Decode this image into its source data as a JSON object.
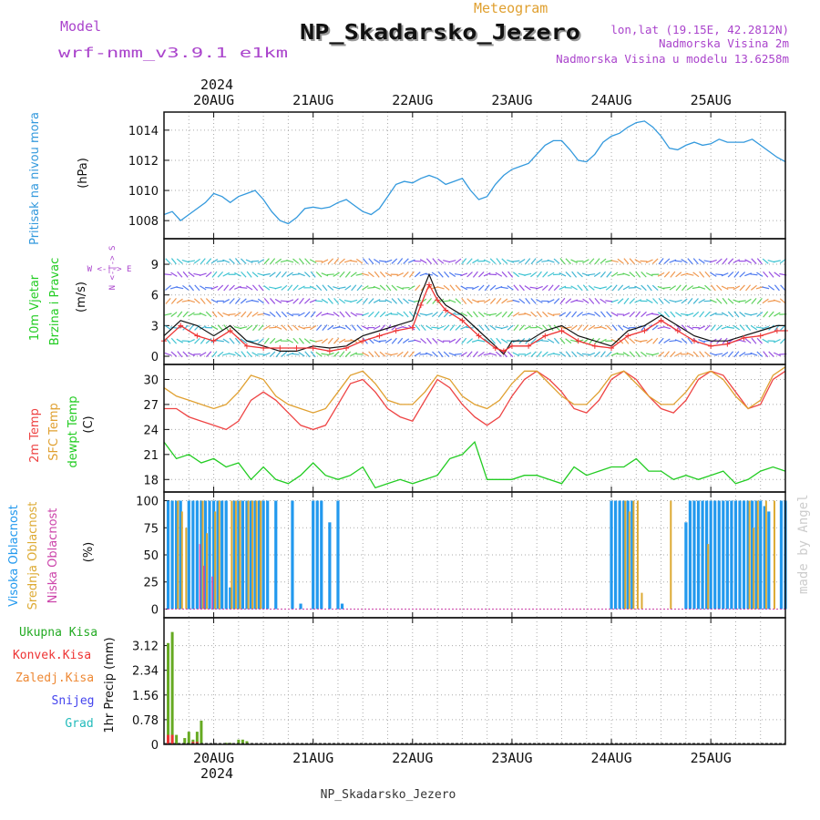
{
  "header": {
    "model_label": "Model",
    "model_name": "wrf-nmm_v3.9.1  e1km",
    "product": "Meteogram",
    "station": "NP_Skadarsko_Jezero",
    "lonlat": "lon,lat (19.15E, 42.2812N)",
    "elevation": "Nadmorska Visina 2m",
    "model_elevation": "Nadmorska Visina u modelu 13.6258m",
    "footer_station": "NP_Skadarsko_Jezero",
    "watermark": "made by Angel"
  },
  "time_axis": {
    "year": "2024",
    "date_labels": [
      "20AUG",
      "21AUG",
      "22AUG",
      "23AUG",
      "24AUG",
      "25AUG"
    ],
    "label_hours": [
      12,
      36,
      60,
      84,
      108,
      132
    ],
    "range_hours": [
      0,
      150
    ]
  },
  "colors": {
    "pressure": "#3399dd",
    "wind_speed": "#ee3333",
    "wind_gust": "#111111",
    "temp2m": "#ee4444",
    "sfc_temp": "#e0a030",
    "dewpt": "#22cc22",
    "cloud_high": "#2299ee",
    "cloud_mid": "#ddaa33",
    "cloud_low": "#cc44aa",
    "precip_total": "#66aa22",
    "precip_conv": "#ee3333",
    "precip_grid": "#ee8833",
    "snow": "#4444ee",
    "hail": "#22bbbb",
    "title_purple": "#aa44cc"
  },
  "panel_labels": {
    "pressure": {
      "name": "Pritisak na nivou mora",
      "unit": "(hPa)"
    },
    "wind": {
      "name1": "10m Vjetar",
      "name2": "Brzina i Pravac",
      "unit": "(m/s)",
      "compass_ns": "N <-|-> S",
      "compass_we": "W  <-|->  E"
    },
    "temp": {
      "name1": "2m Temp",
      "name2": "SFC Temp",
      "name3": "dewpt Temp",
      "unit": "(C)"
    },
    "cloud": {
      "name1": "Visoka Oblacnost",
      "name2": "Srednja Oblacnost",
      "name3": "Niska Oblacnost",
      "unit": "(%)"
    },
    "precip": {
      "unit": "1hr Precip (mm)",
      "legend": [
        "Ukupna Kisa",
        "Konvek.Kisa",
        "Zaledj.Kisa",
        "Snijeg",
        "Grad"
      ]
    }
  },
  "chart_data": [
    {
      "type": "line",
      "panel": "pressure",
      "ylim": [
        1006.8,
        1015.2
      ],
      "yticks": [
        1008,
        1010,
        1012,
        1014
      ],
      "ytick_labels": [
        "1008",
        "1010",
        "1012",
        "1014"
      ],
      "x": [
        0,
        2,
        4,
        6,
        8,
        10,
        12,
        14,
        16,
        18,
        20,
        22,
        24,
        26,
        28,
        30,
        32,
        34,
        36,
        38,
        40,
        42,
        44,
        46,
        48,
        50,
        52,
        54,
        56,
        58,
        60,
        62,
        64,
        66,
        68,
        70,
        72,
        74,
        76,
        78,
        80,
        82,
        84,
        86,
        88,
        90,
        92,
        94,
        96,
        98,
        100,
        102,
        104,
        106,
        108,
        110,
        112,
        114,
        116,
        118,
        120,
        122,
        124,
        126,
        128,
        130,
        132,
        134,
        136,
        138,
        140,
        142,
        144,
        146,
        148,
        150
      ],
      "series": [
        {
          "name": "Pritisak na nivou mora",
          "values": [
            1008.4,
            1008.6,
            1008.0,
            1008.4,
            1008.8,
            1009.2,
            1009.8,
            1009.6,
            1009.2,
            1009.6,
            1009.8,
            1010.0,
            1009.4,
            1008.6,
            1008.0,
            1007.8,
            1008.2,
            1008.8,
            1008.9,
            1008.8,
            1008.9,
            1009.2,
            1009.4,
            1009.0,
            1008.6,
            1008.4,
            1008.8,
            1009.6,
            1010.4,
            1010.6,
            1010.5,
            1010.8,
            1011.0,
            1010.8,
            1010.4,
            1010.6,
            1010.8,
            1010.0,
            1009.4,
            1009.6,
            1010.4,
            1011.0,
            1011.4,
            1011.6,
            1011.8,
            1012.4,
            1013.0,
            1013.3,
            1013.3,
            1012.7,
            1012.0,
            1011.9,
            1012.4,
            1013.2,
            1013.6,
            1013.8,
            1014.2,
            1014.5,
            1014.6,
            1014.2,
            1013.6,
            1012.8,
            1012.7,
            1013.0,
            1013.2,
            1013.0,
            1013.1,
            1013.4,
            1013.2,
            1013.2,
            1013.2,
            1013.4,
            1013.0,
            1012.6,
            1012.2,
            1011.9
          ]
        }
      ]
    },
    {
      "type": "line",
      "panel": "wind",
      "ylim": [
        -0.8,
        11.5
      ],
      "yticks": [
        0,
        3,
        6,
        9
      ],
      "ytick_labels": [
        "0",
        "3",
        "6",
        "9"
      ],
      "x": [
        0,
        4,
        8,
        12,
        16,
        20,
        24,
        28,
        32,
        36,
        40,
        44,
        48,
        52,
        56,
        60,
        62,
        64,
        66,
        68,
        72,
        76,
        80,
        82,
        84,
        88,
        92,
        96,
        100,
        104,
        108,
        112,
        116,
        120,
        124,
        128,
        132,
        136,
        140,
        144,
        148,
        150
      ],
      "series": [
        {
          "name": "speed",
          "values": [
            1.5,
            3.0,
            2.0,
            1.5,
            2.5,
            1.0,
            0.8,
            0.8,
            0.8,
            0.8,
            0.5,
            0.8,
            1.5,
            2.0,
            2.5,
            2.8,
            5.0,
            7.0,
            5.5,
            4.5,
            3.5,
            2.0,
            0.8,
            0.5,
            1.0,
            1.0,
            2.0,
            2.5,
            1.5,
            1.0,
            0.8,
            2.0,
            2.5,
            3.5,
            2.5,
            1.5,
            1.0,
            1.2,
            1.8,
            2.0,
            2.5,
            2.5
          ]
        },
        {
          "name": "gust",
          "values": [
            2.0,
            3.5,
            3.0,
            2.0,
            3.0,
            1.5,
            1.0,
            0.5,
            0.5,
            1.0,
            0.8,
            1.0,
            2.0,
            2.5,
            3.0,
            3.5,
            6.0,
            8.0,
            6.0,
            5.0,
            4.0,
            2.5,
            1.0,
            0.2,
            1.5,
            1.5,
            2.5,
            3.0,
            2.0,
            1.5,
            1.0,
            2.5,
            3.0,
            4.0,
            3.0,
            2.0,
            1.5,
            1.5,
            2.0,
            2.5,
            3.0,
            3.0
          ]
        }
      ]
    },
    {
      "type": "line",
      "panel": "temperature",
      "ylim": [
        16.5,
        31.8
      ],
      "yticks": [
        18,
        21,
        24,
        27,
        30
      ],
      "ytick_labels": [
        "18",
        "21",
        "24",
        "27",
        "30"
      ],
      "x": [
        0,
        3,
        6,
        9,
        12,
        15,
        18,
        21,
        24,
        27,
        30,
        33,
        36,
        39,
        42,
        45,
        48,
        51,
        54,
        57,
        60,
        63,
        66,
        69,
        72,
        75,
        78,
        81,
        84,
        87,
        90,
        93,
        96,
        99,
        102,
        105,
        108,
        111,
        114,
        117,
        120,
        123,
        126,
        129,
        132,
        135,
        138,
        141,
        144,
        147,
        150
      ],
      "series": [
        {
          "name": "2m Temp",
          "values": [
            26.5,
            26.5,
            25.5,
            25.0,
            24.5,
            24.0,
            25.0,
            27.5,
            28.5,
            27.5,
            26.0,
            24.5,
            24.0,
            24.5,
            27.0,
            29.5,
            30.0,
            28.5,
            26.5,
            25.5,
            25.0,
            27.5,
            30.0,
            29.0,
            27.0,
            25.5,
            24.5,
            25.5,
            28.0,
            30.0,
            31.0,
            30.0,
            28.5,
            26.5,
            26.0,
            27.5,
            30.0,
            31.0,
            30.0,
            28.0,
            26.5,
            26.0,
            27.5,
            30.0,
            31.0,
            30.5,
            28.5,
            26.5,
            27.0,
            30.0,
            31.0
          ]
        },
        {
          "name": "SFC Temp",
          "values": [
            29.0,
            28.0,
            27.5,
            27.0,
            26.5,
            27.0,
            28.5,
            30.5,
            30.0,
            28.0,
            27.0,
            26.5,
            26.0,
            26.5,
            28.5,
            30.5,
            31.0,
            29.5,
            27.5,
            27.0,
            27.0,
            28.5,
            30.5,
            30.0,
            28.0,
            27.0,
            26.5,
            27.5,
            29.5,
            31.0,
            31.0,
            29.5,
            28.0,
            27.0,
            27.0,
            28.5,
            30.5,
            31.0,
            29.5,
            28.0,
            27.0,
            27.0,
            28.5,
            30.5,
            31.0,
            30.0,
            28.0,
            26.5,
            27.5,
            30.5,
            31.5
          ]
        },
        {
          "name": "dewpt Temp",
          "values": [
            22.5,
            20.5,
            21.0,
            20.0,
            20.5,
            19.5,
            20.0,
            18.0,
            19.5,
            18.0,
            17.5,
            18.5,
            20.0,
            18.5,
            18.0,
            18.5,
            19.5,
            17.0,
            17.5,
            18.0,
            17.5,
            18.0,
            18.5,
            20.5,
            21.0,
            22.5,
            18.0,
            18.0,
            18.0,
            18.5,
            18.5,
            18.0,
            17.5,
            19.5,
            18.5,
            19.0,
            19.5,
            19.5,
            20.5,
            19.0,
            19.0,
            18.0,
            18.5,
            18.0,
            18.5,
            19.0,
            17.5,
            18.0,
            19.0,
            19.5,
            19.0
          ]
        }
      ]
    },
    {
      "type": "bar",
      "panel": "cloud",
      "ylim": [
        -8,
        108
      ],
      "yticks": [
        0,
        25,
        50,
        75,
        100
      ],
      "ytick_labels": [
        "0",
        "25",
        "50",
        "75",
        "100"
      ],
      "series": [
        {
          "name": "Visoka Oblacnost",
          "x": [
            1,
            2,
            3,
            4,
            6,
            7,
            8,
            9,
            10,
            11,
            12,
            13,
            14,
            15,
            16,
            17,
            18,
            19,
            20,
            21,
            22,
            23,
            24,
            25,
            27,
            31,
            33,
            36,
            37,
            38,
            40,
            42,
            43,
            108,
            109,
            110,
            111,
            112,
            113,
            126,
            127,
            128,
            129,
            130,
            131,
            132,
            133,
            134,
            135,
            136,
            137,
            138,
            139,
            140,
            141,
            142,
            143,
            144,
            145,
            146,
            149,
            150
          ],
          "values": [
            100,
            100,
            100,
            100,
            100,
            100,
            100,
            100,
            100,
            100,
            100,
            100,
            100,
            100,
            20,
            100,
            100,
            100,
            100,
            100,
            100,
            100,
            100,
            100,
            100,
            100,
            5,
            100,
            100,
            100,
            80,
            100,
            5,
            100,
            100,
            100,
            100,
            100,
            100,
            80,
            100,
            100,
            100,
            100,
            100,
            100,
            100,
            100,
            100,
            100,
            100,
            100,
            100,
            100,
            100,
            100,
            100,
            100,
            95,
            90,
            100,
            100
          ]
        },
        {
          "name": "Srednja Oblacnost",
          "x": [
            3,
            4,
            5,
            9,
            10,
            12,
            13,
            16,
            17,
            18,
            20,
            21,
            22,
            23,
            111,
            112,
            113,
            114,
            115,
            122,
            131,
            141,
            142,
            143,
            145,
            147
          ],
          "values": [
            100,
            90,
            75,
            100,
            70,
            90,
            100,
            100,
            100,
            100,
            100,
            100,
            100,
            100,
            100,
            90,
            100,
            100,
            15,
            100,
            60,
            100,
            75,
            100,
            100,
            100
          ]
        },
        {
          "name": "Niska Oblacnost",
          "x": [
            9,
            10,
            12
          ],
          "values": [
            60,
            40,
            30
          ]
        }
      ]
    },
    {
      "type": "bar",
      "panel": "precip",
      "ylim": [
        0,
        4.0
      ],
      "yticks": [
        0,
        0.78,
        1.56,
        2.34,
        3.12
      ],
      "ytick_labels": [
        "0",
        "0.78",
        "1.56",
        "2.34",
        "3.12"
      ],
      "series": [
        {
          "name": "Ukupna Kisa",
          "x": [
            1,
            2,
            3,
            5,
            6,
            7,
            8,
            9,
            15,
            16,
            18,
            19,
            20
          ],
          "values": [
            3.2,
            3.55,
            0.3,
            0.2,
            0.4,
            0.15,
            0.4,
            0.75,
            0.05,
            0.05,
            0.15,
            0.15,
            0.1
          ]
        },
        {
          "name": "Konvek.Kisa",
          "x": [
            1,
            2,
            7,
            8
          ],
          "values": [
            0.3,
            0.3,
            0.08,
            0.08
          ]
        }
      ]
    },
    {
      "type": "scatter",
      "panel": "wind_direction_barbs",
      "note": "wind direction arrows in 10m wind panel",
      "x": [
        0,
        24,
        48,
        72,
        96,
        120,
        144
      ],
      "values": [
        2,
        1,
        3,
        2,
        2,
        2,
        2
      ]
    }
  ]
}
